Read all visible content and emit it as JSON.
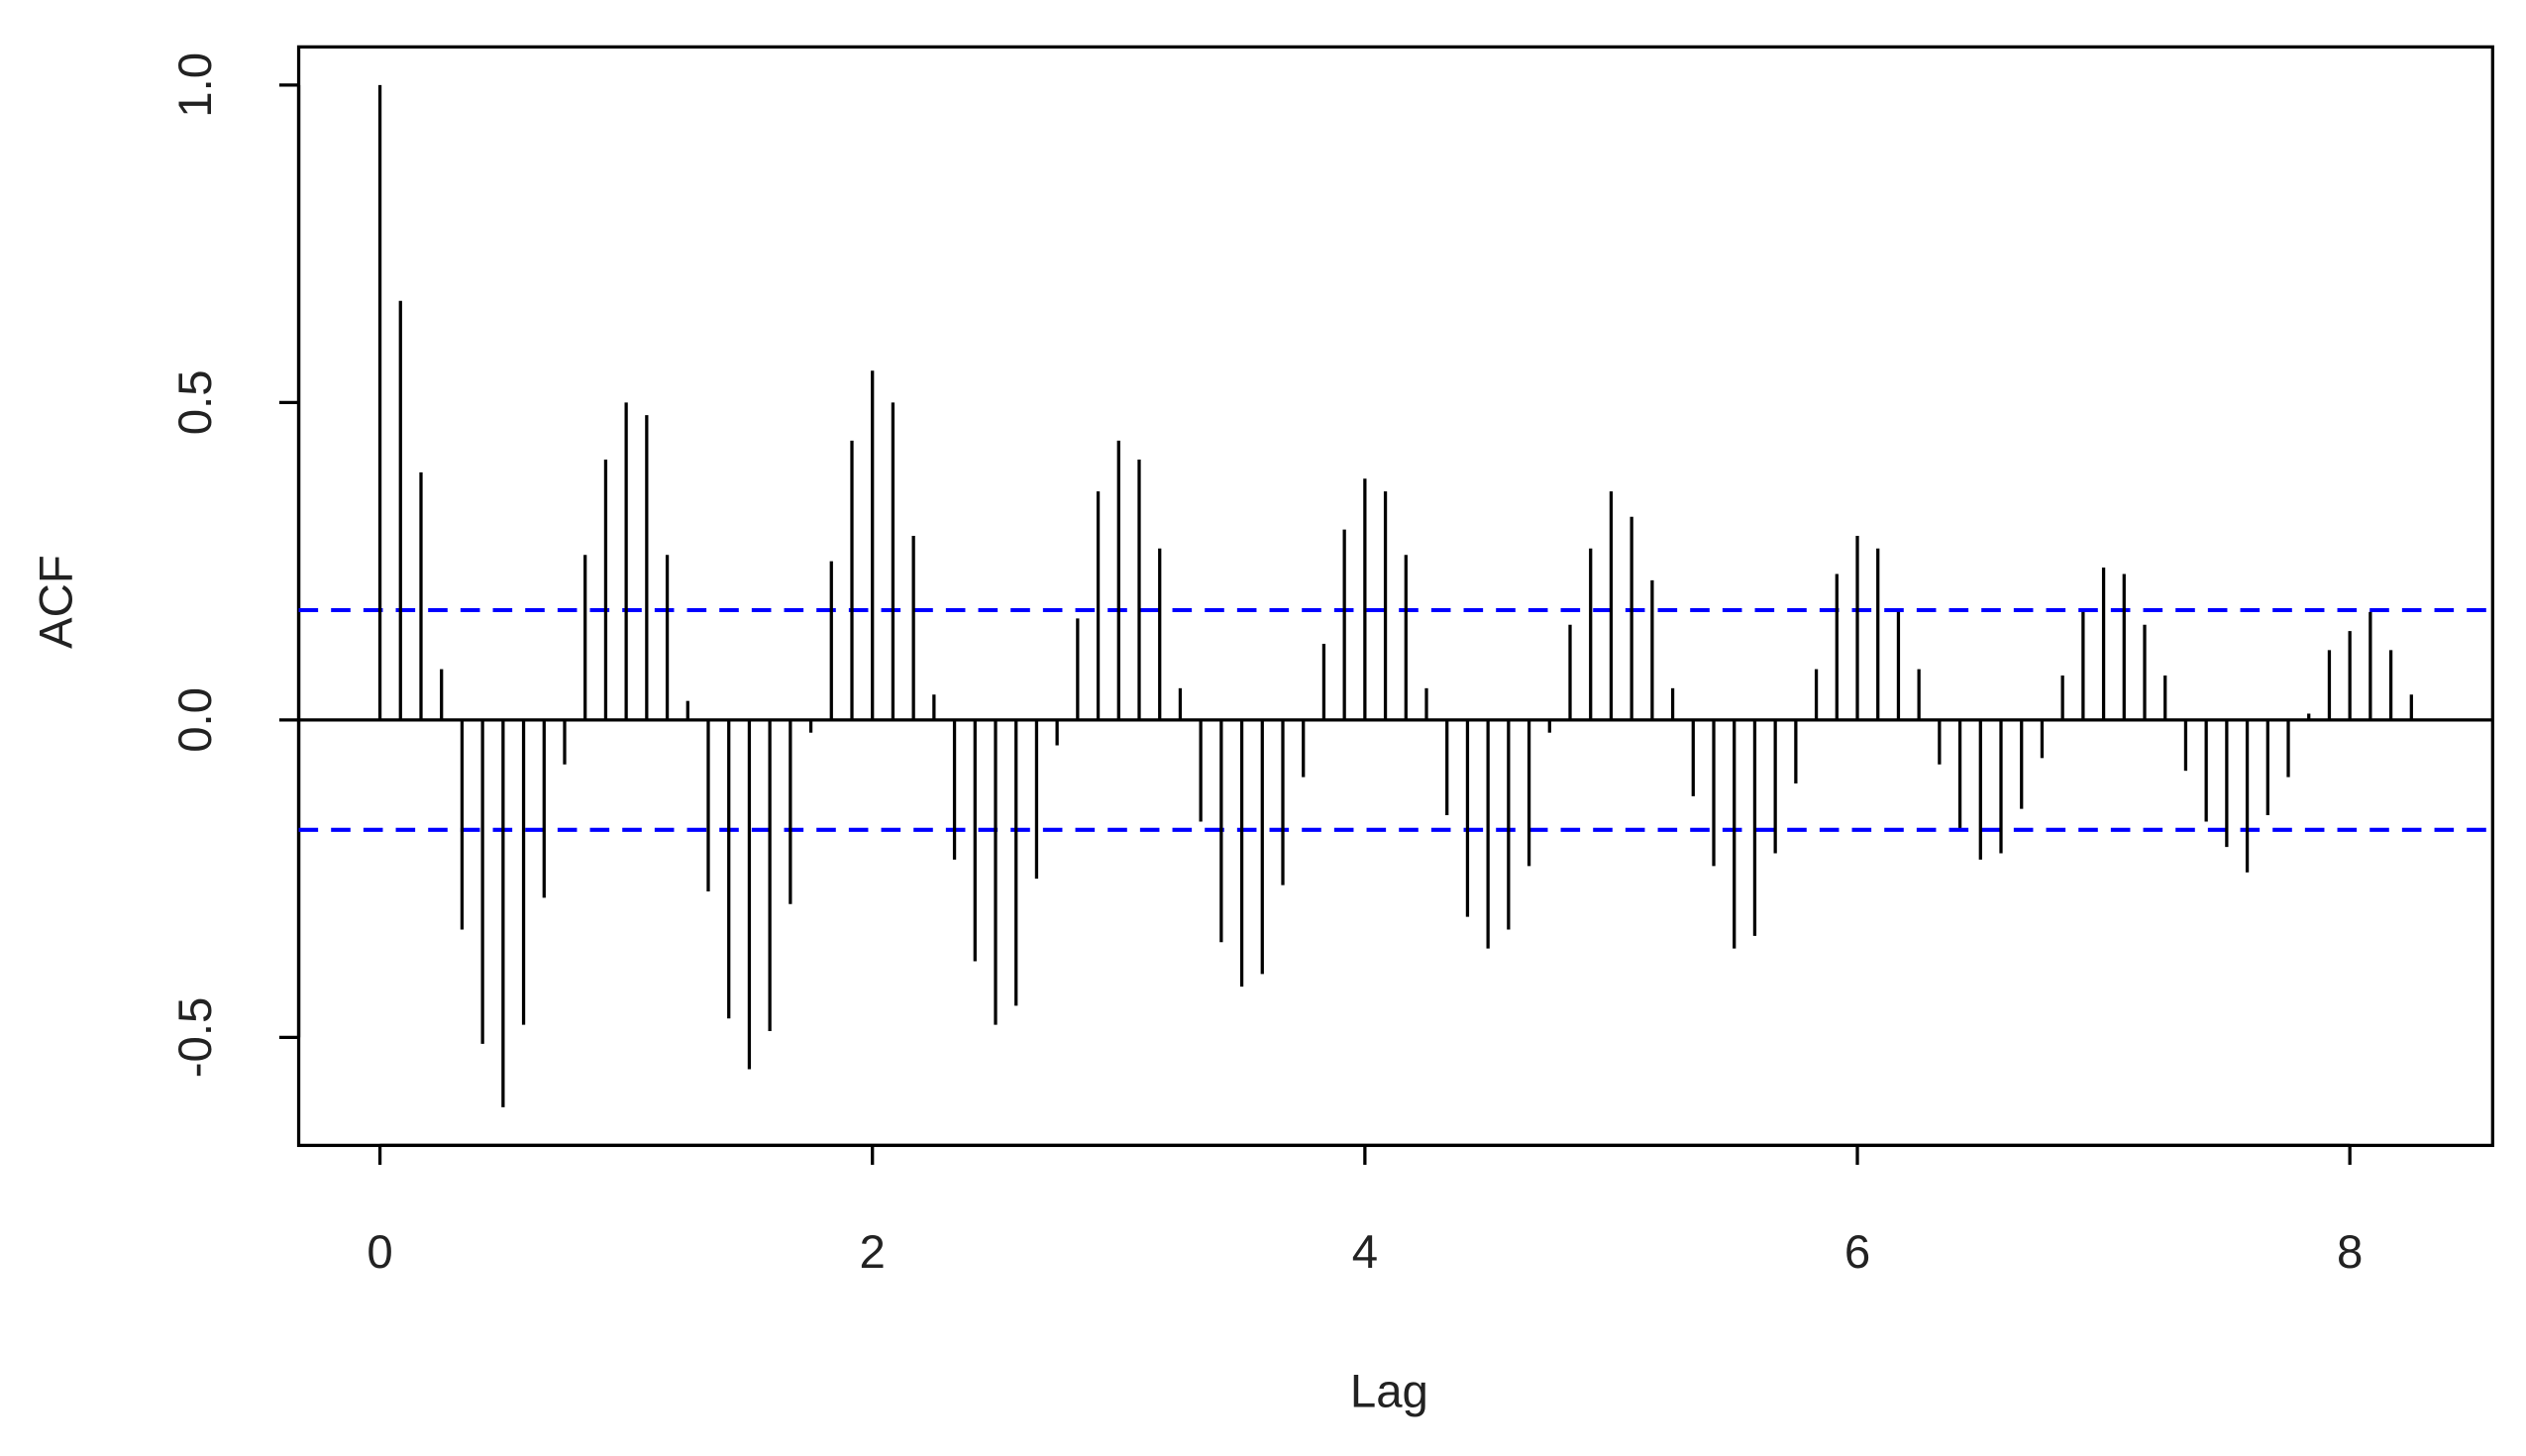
{
  "chart_data": {
    "type": "stem",
    "x_label": "Lag",
    "y_label": "ACF",
    "x": [
      0,
      0.0833,
      0.1667,
      0.25,
      0.3333,
      0.4167,
      0.5,
      0.5833,
      0.6667,
      0.75,
      0.8333,
      0.9167,
      1,
      1.0833,
      1.1667,
      1.25,
      1.3333,
      1.4167,
      1.5,
      1.5833,
      1.6667,
      1.75,
      1.8333,
      1.9167,
      2,
      2.0833,
      2.1667,
      2.25,
      2.3333,
      2.4167,
      2.5,
      2.5833,
      2.6667,
      2.75,
      2.8333,
      2.9167,
      3,
      3.0833,
      3.1667,
      3.25,
      3.3333,
      3.4167,
      3.5,
      3.5833,
      3.6667,
      3.75,
      3.8333,
      3.9167,
      4,
      4.0833,
      4.1667,
      4.25,
      4.3333,
      4.4167,
      4.5,
      4.5833,
      4.6667,
      4.75,
      4.8333,
      4.9167,
      5,
      5.0833,
      5.1667,
      5.25,
      5.3333,
      5.4167,
      5.5,
      5.5833,
      5.6667,
      5.75,
      5.8333,
      5.9167,
      6,
      6.0833,
      6.1667,
      6.25,
      6.3333,
      6.4167,
      6.5,
      6.5833,
      6.6667,
      6.75,
      6.8333,
      6.9167,
      7,
      7.0833,
      7.1667,
      7.25,
      7.3333,
      7.4167,
      7.5,
      7.5833,
      7.6667,
      7.75,
      7.8333,
      7.9167,
      8,
      8.0833,
      8.1667,
      8.25
    ],
    "values": [
      1.0,
      0.66,
      0.39,
      0.08,
      -0.33,
      -0.51,
      -0.61,
      -0.48,
      -0.28,
      -0.07,
      0.26,
      0.41,
      0.5,
      0.48,
      0.26,
      0.03,
      -0.27,
      -0.47,
      -0.55,
      -0.49,
      -0.29,
      -0.02,
      0.25,
      0.44,
      0.55,
      0.5,
      0.29,
      0.04,
      -0.22,
      -0.38,
      -0.48,
      -0.45,
      -0.25,
      -0.04,
      0.16,
      0.36,
      0.44,
      0.41,
      0.27,
      0.05,
      -0.16,
      -0.35,
      -0.42,
      -0.4,
      -0.26,
      -0.09,
      0.12,
      0.3,
      0.38,
      0.36,
      0.26,
      0.05,
      -0.15,
      -0.31,
      -0.36,
      -0.33,
      -0.23,
      -0.02,
      0.15,
      0.27,
      0.36,
      0.32,
      0.22,
      0.05,
      -0.12,
      -0.23,
      -0.36,
      -0.34,
      -0.21,
      -0.1,
      0.08,
      0.23,
      0.29,
      0.27,
      0.17,
      0.08,
      -0.07,
      -0.17,
      -0.22,
      -0.21,
      -0.14,
      -0.06,
      0.07,
      0.17,
      0.24,
      0.23,
      0.15,
      0.07,
      -0.08,
      -0.16,
      -0.2,
      -0.24,
      -0.15,
      -0.09,
      0.01,
      0.11,
      0.14,
      0.17,
      0.11,
      0.04
    ],
    "color": "#000000",
    "confidence_bounds": [
      0.173,
      -0.173
    ],
    "confidence_color": "#0000ff",
    "xlim": [
      -0.33,
      8.58
    ],
    "xticks": [
      0,
      2,
      4,
      6,
      8
    ],
    "ylim": [
      -0.67,
      1.06
    ],
    "yticks": [
      {
        "value": -0.5,
        "label": "-0.5"
      },
      {
        "value": 0,
        "label": "0.0"
      },
      {
        "value": 0.5,
        "label": "0.5"
      },
      {
        "value": 1,
        "label": "1.0"
      }
    ]
  }
}
